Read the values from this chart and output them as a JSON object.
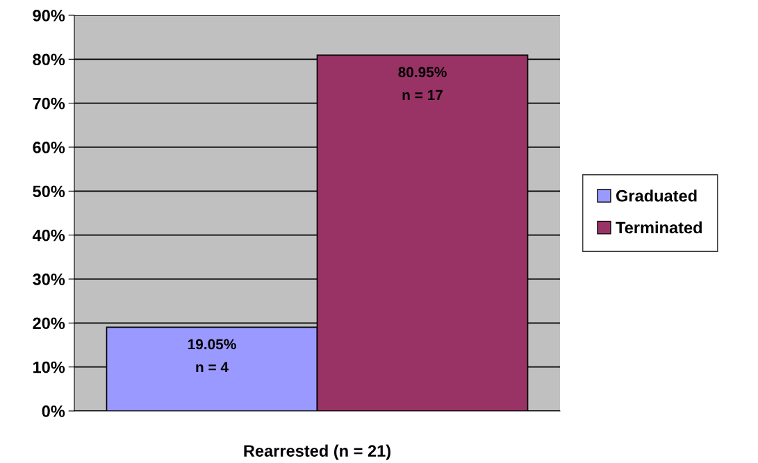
{
  "chart_data": {
    "type": "bar",
    "categories": [
      "Rearrested (n = 21)"
    ],
    "series": [
      {
        "name": "Graduated",
        "color": "#9999ff",
        "values": [
          19.05
        ],
        "value_labels": [
          "19.05%\nn = 4"
        ]
      },
      {
        "name": "Terminated",
        "color": "#993366",
        "values": [
          80.95
        ],
        "value_labels": [
          "80.95%\nn = 17"
        ]
      }
    ],
    "ylim": [
      0,
      90
    ],
    "yticks": [
      {
        "value": 0,
        "label": "0%"
      },
      {
        "value": 10,
        "label": "10%"
      },
      {
        "value": 20,
        "label": "20%"
      },
      {
        "value": 30,
        "label": "30%"
      },
      {
        "value": 40,
        "label": "40%"
      },
      {
        "value": 50,
        "label": "50%"
      },
      {
        "value": 60,
        "label": "60%"
      },
      {
        "value": 70,
        "label": "70%"
      },
      {
        "value": 80,
        "label": "80%"
      },
      {
        "value": 90,
        "label": "90%"
      }
    ],
    "grid": "y",
    "legend": "right"
  }
}
